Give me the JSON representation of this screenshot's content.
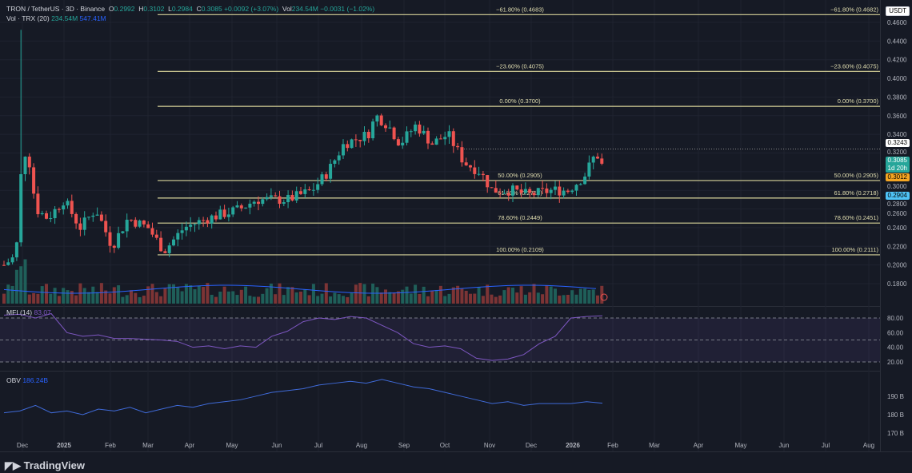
{
  "header": {
    "symbol": "TRON / TetherUS · 3D · Binance",
    "o_label": "O",
    "o": "0.2992",
    "h_label": "H",
    "h": "0.3102",
    "l_label": "L",
    "l": "0.2984",
    "c_label": "C",
    "c": "0.3085",
    "chg": "+0.0092 (+3.07%)",
    "vol_label": "Vol",
    "vol": "234.54M",
    "vol_chg": "−0.0031 (−1.02%)",
    "vol_ind": "Vol · TRX (20)",
    "vol_v1": "234.54M",
    "vol_v2": "547.41M",
    "currency": "USDT"
  },
  "mfi": {
    "label": "MFI (14)",
    "value": "83.07",
    "ticks": [
      "80.00",
      "60.00",
      "40.00",
      "20.00"
    ]
  },
  "obv": {
    "label": "OBV",
    "value": "186.24B",
    "ticks": [
      "190 B",
      "180 B",
      "170 B"
    ]
  },
  "price_tags": {
    "last": "0.3085",
    "countdown": "1d 20h",
    "dotted": "0.3243",
    "orange": "0.3012",
    "blue": "0.2904"
  },
  "brand": "TradingView",
  "colors": {
    "up": "#26a69a",
    "down": "#ef5350",
    "fib": "#d8d49a",
    "mfi": "#7e57c2",
    "obv": "#3f6ad8"
  },
  "chart_data": {
    "type": "candlestick",
    "title": "TRON / TetherUS · 3D · Binance",
    "y_ticks": [
      "0.4600",
      "0.4400",
      "0.4200",
      "0.4000",
      "0.3800",
      "0.3600",
      "0.3400",
      "0.3200",
      "0.3000",
      "0.2800",
      "0.2600",
      "0.2400",
      "0.2200",
      "0.2000",
      "0.1800"
    ],
    "ylim": [
      0.18,
      0.46
    ],
    "x_ticks": [
      "Dec",
      "2025",
      "Feb",
      "Mar",
      "Apr",
      "May",
      "Jun",
      "Jul",
      "Aug",
      "Sep",
      "Oct",
      "Nov",
      "Dec",
      "2026",
      "Feb",
      "Mar",
      "Apr",
      "May",
      "Jun",
      "Jul",
      "Aug"
    ],
    "close_path": [
      0.2,
      0.21,
      0.32,
      0.32,
      0.26,
      0.25,
      0.27,
      0.24,
      0.26,
      0.22,
      0.25,
      0.24,
      0.215,
      0.24,
      0.25,
      0.26,
      0.27,
      0.27,
      0.28,
      0.3,
      0.33,
      0.34,
      0.36,
      0.35,
      0.33,
      0.35,
      0.33,
      0.34,
      0.31,
      0.3,
      0.28,
      0.28,
      0.275,
      0.28,
      0.28,
      0.295,
      0.32,
      0.3085
    ],
    "fib_levels": [
      {
        "left": "−61.80% (0.4683)",
        "right": "−61.80% (0.4682)",
        "price": 0.4683
      },
      {
        "left": "−23.60% (0.4075)",
        "right": "−23.60% (0.4075)",
        "price": 0.4075
      },
      {
        "left": "0.00% (0.3700)",
        "right": "0.00% (0.3700)",
        "price": 0.37
      },
      {
        "left": "50.00% (0.2905)",
        "right": "50.00% (0.2905)",
        "price": 0.2905
      },
      {
        "left": "61.80% (0.2717)",
        "right": "61.80% (0.2718)",
        "price": 0.2717
      },
      {
        "left": "78.60% (0.2449)",
        "right": "78.60% (0.2451)",
        "price": 0.2449
      },
      {
        "left": "100.00% (0.2109)",
        "right": "100.00% (0.2111)",
        "price": 0.2109
      }
    ],
    "mfi_path": [
      84,
      85,
      80,
      86,
      60,
      55,
      57,
      52,
      52,
      51,
      50,
      48,
      40,
      42,
      38,
      42,
      40,
      55,
      62,
      75,
      80,
      78,
      82,
      80,
      70,
      60,
      45,
      40,
      42,
      38,
      25,
      22,
      24,
      30,
      45,
      55,
      80,
      82,
      83
    ],
    "obv_path": [
      181,
      182,
      185,
      181,
      182,
      180,
      183,
      182,
      184,
      181,
      183,
      185,
      184,
      186,
      187,
      188,
      190,
      192,
      193,
      194,
      196,
      197,
      198,
      197,
      199,
      197,
      195,
      194,
      192,
      190,
      188,
      186,
      187,
      185,
      186,
      186,
      186,
      187,
      186.2
    ]
  }
}
